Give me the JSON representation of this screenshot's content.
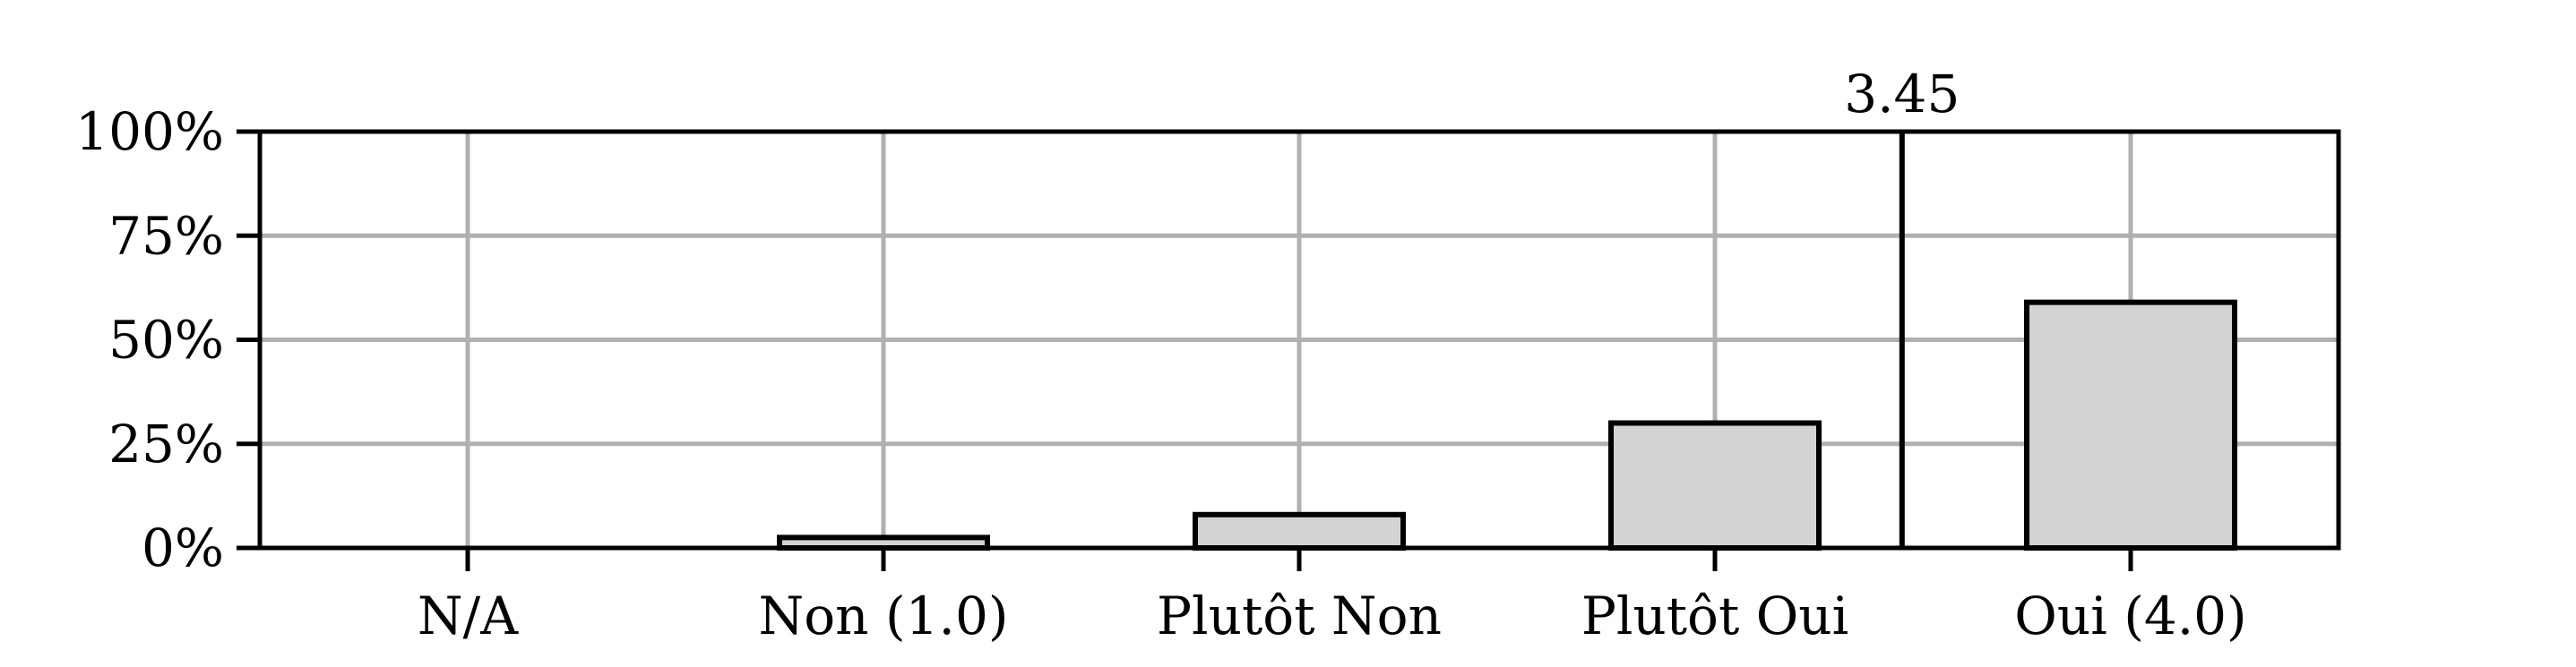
{
  "chart_data": {
    "type": "bar",
    "categories": [
      "N/A",
      "Non (1.0)",
      "Plutôt Non",
      "Plutôt Oui",
      "Oui (4.0)"
    ],
    "values": [
      0,
      2.5,
      8,
      30,
      59
    ],
    "ylim": [
      0,
      100
    ],
    "y_ticks": [
      0,
      25,
      50,
      75,
      100
    ],
    "y_tick_labels": [
      "0%",
      "25%",
      "50%",
      "75%",
      "100%"
    ],
    "mean_marker": {
      "value": 3.45,
      "label": "3.45",
      "scale": [
        1.0,
        4.0
      ]
    },
    "grid": true,
    "title": "",
    "xlabel": "",
    "ylabel": "",
    "colors": {
      "bar_fill": "#d3d3d3",
      "bar_edge": "#000000",
      "grid": "#b0b0b0",
      "axis": "#000000"
    }
  }
}
